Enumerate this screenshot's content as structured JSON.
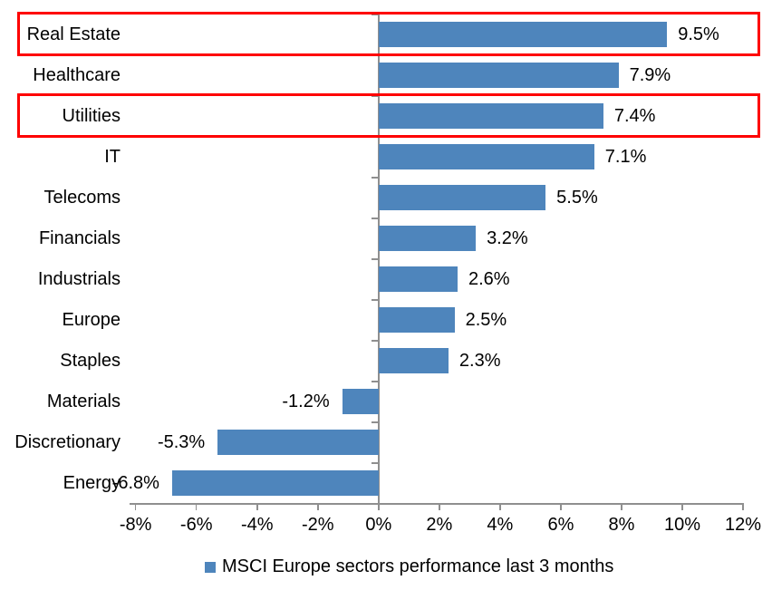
{
  "chart_data": {
    "type": "bar",
    "orientation": "horizontal",
    "categories": [
      "Real Estate",
      "Healthcare",
      "Utilities",
      "IT",
      "Telecoms",
      "Financials",
      "Industrials",
      "Europe",
      "Staples",
      "Materials",
      "Discretionary",
      "Energy"
    ],
    "values": [
      9.5,
      7.9,
      7.4,
      7.1,
      5.5,
      3.2,
      2.6,
      2.5,
      2.3,
      -1.2,
      -5.3,
      -6.8
    ],
    "value_labels": [
      "9.5%",
      "7.9%",
      "7.4%",
      "7.1%",
      "5.5%",
      "3.2%",
      "2.6%",
      "2.5%",
      "2.3%",
      "-1.2%",
      "-5.3%",
      "-6.8%"
    ],
    "x_tick_values": [
      -8,
      -6,
      -4,
      -2,
      0,
      2,
      4,
      6,
      8,
      10,
      12
    ],
    "x_tick_labels": [
      "-8%",
      "-6%",
      "-4%",
      "-2%",
      "0%",
      "2%",
      "4%",
      "6%",
      "8%",
      "10%",
      "12%"
    ],
    "xlim": [
      -8.2,
      12.0
    ],
    "legend": "MSCI Europe sectors performance last 3 months",
    "bar_color": "#4E85BC",
    "axis_color": "#8F8F8F",
    "text_color": "#000000",
    "highlight_color": "#FE0000",
    "highlighted_categories": [
      "Real Estate",
      "Utilities"
    ],
    "grid": false,
    "legend_position": "bottom"
  }
}
